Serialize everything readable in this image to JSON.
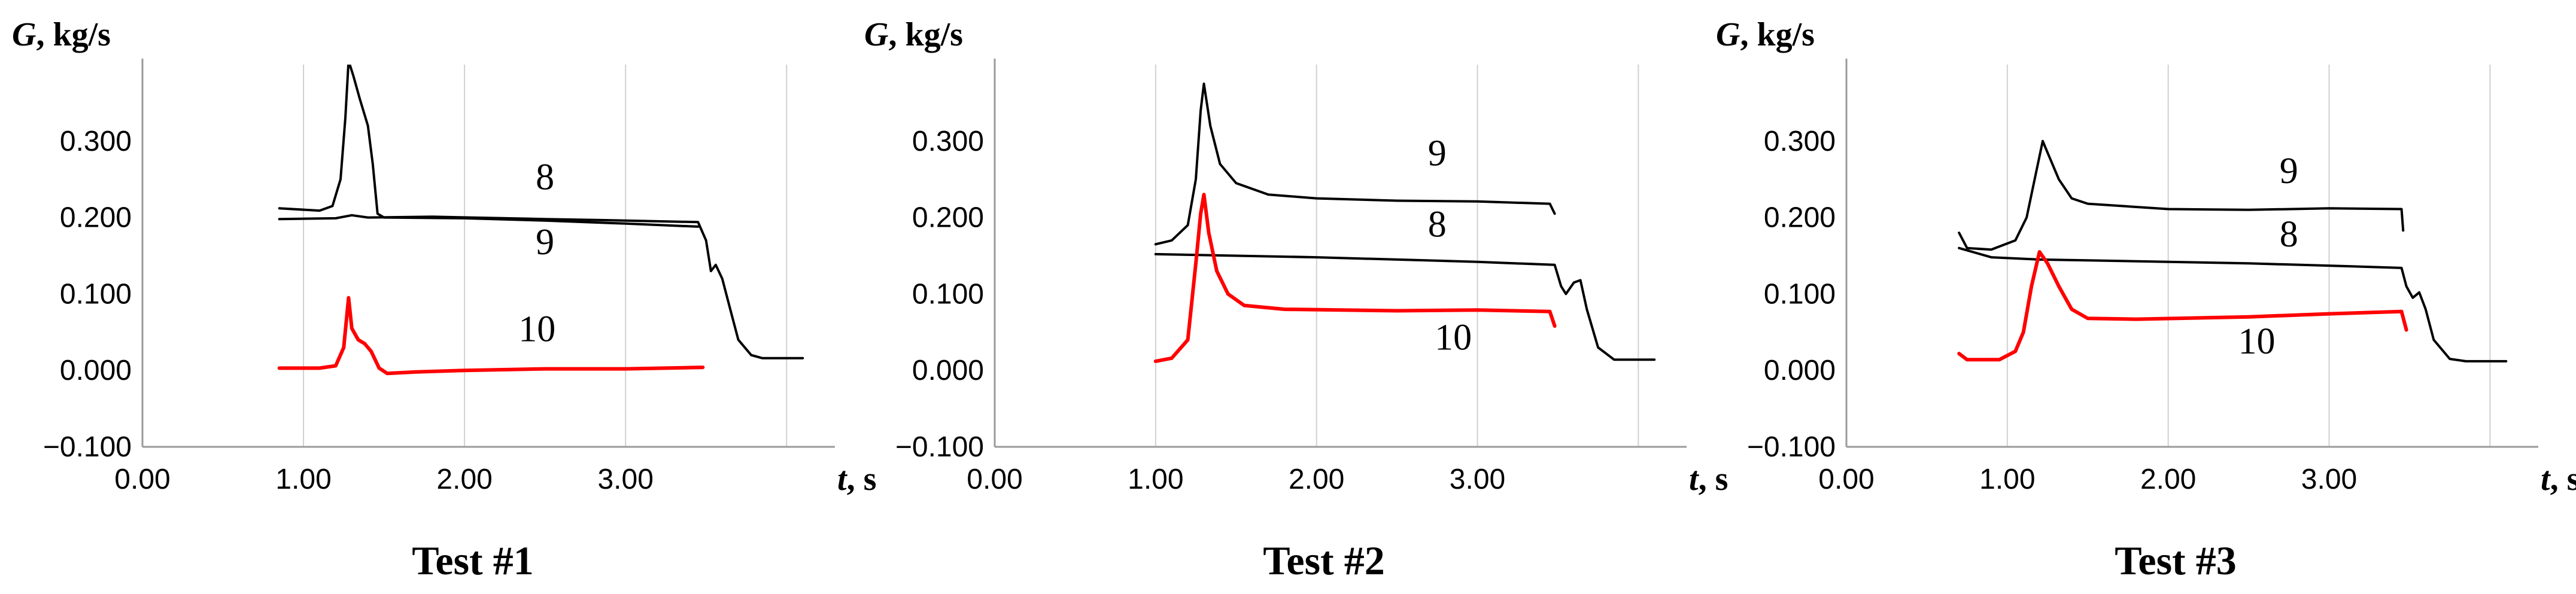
{
  "chart_data": [
    {
      "type": "line",
      "title": "Test #1",
      "xlabel": {
        "var": "t",
        "unit": ", s"
      },
      "ylabel": {
        "var": "G",
        "unit": ", kg/s"
      },
      "xlim": [
        0,
        4.3
      ],
      "ylim": [
        -0.1,
        0.4
      ],
      "xticks": [
        "0.00",
        "1.00",
        "2.00",
        "3.00"
      ],
      "yticks": [
        "−0.100",
        "0.000",
        "0.100",
        "0.200",
        "0.300"
      ],
      "grid": "vertical",
      "series": [
        {
          "name": "8",
          "color": "#000000",
          "points": [
            [
              0.85,
              0.198
            ],
            [
              1.2,
              0.199
            ],
            [
              1.3,
              0.203
            ],
            [
              1.4,
              0.2
            ],
            [
              1.8,
              0.201
            ],
            [
              2.5,
              0.198
            ],
            [
              3.0,
              0.196
            ],
            [
              3.45,
              0.194
            ],
            [
              3.5,
              0.17
            ],
            [
              3.53,
              0.13
            ],
            [
              3.56,
              0.138
            ],
            [
              3.6,
              0.12
            ],
            [
              3.65,
              0.08
            ],
            [
              3.7,
              0.04
            ],
            [
              3.78,
              0.02
            ],
            [
              3.85,
              0.016
            ],
            [
              4.1,
              0.016
            ]
          ]
        },
        {
          "name": "9",
          "color": "#000000",
          "points": [
            [
              0.85,
              0.212
            ],
            [
              1.1,
              0.209
            ],
            [
              1.18,
              0.215
            ],
            [
              1.23,
              0.25
            ],
            [
              1.26,
              0.33
            ],
            [
              1.28,
              0.405
            ],
            [
              1.31,
              0.385
            ],
            [
              1.35,
              0.355
            ],
            [
              1.4,
              0.32
            ],
            [
              1.43,
              0.27
            ],
            [
              1.46,
              0.205
            ],
            [
              1.5,
              0.2
            ],
            [
              2.0,
              0.199
            ],
            [
              2.5,
              0.196
            ],
            [
              3.0,
              0.192
            ],
            [
              3.45,
              0.188
            ]
          ]
        },
        {
          "name": "10",
          "color": "#ff0000",
          "points": [
            [
              0.85,
              0.003
            ],
            [
              1.1,
              0.003
            ],
            [
              1.2,
              0.006
            ],
            [
              1.25,
              0.03
            ],
            [
              1.28,
              0.095
            ],
            [
              1.3,
              0.055
            ],
            [
              1.34,
              0.04
            ],
            [
              1.38,
              0.035
            ],
            [
              1.42,
              0.025
            ],
            [
              1.47,
              0.003
            ],
            [
              1.52,
              -0.004
            ],
            [
              1.7,
              -0.002
            ],
            [
              2.0,
              0.0
            ],
            [
              2.5,
              0.002
            ],
            [
              3.0,
              0.002
            ],
            [
              3.48,
              0.004
            ]
          ]
        }
      ],
      "annotations": [
        {
          "text": "8",
          "x": 2.5,
          "y": 0.237
        },
        {
          "text": "9",
          "x": 2.5,
          "y": 0.152
        },
        {
          "text": "10",
          "x": 2.45,
          "y": 0.038
        }
      ]
    },
    {
      "type": "line",
      "title": "Test #2",
      "xlabel": {
        "var": "t",
        "unit": ", s"
      },
      "ylabel": {
        "var": "G",
        "unit": ", kg/s"
      },
      "xlim": [
        0,
        4.3
      ],
      "ylim": [
        -0.1,
        0.4
      ],
      "xticks": [
        "0.00",
        "1.00",
        "2.00",
        "3.00"
      ],
      "yticks": [
        "−0.100",
        "0.000",
        "0.100",
        "0.200",
        "0.300"
      ],
      "grid": "vertical",
      "series": [
        {
          "name": "8",
          "color": "#000000",
          "points": [
            [
              1.0,
              0.152
            ],
            [
              1.5,
              0.15
            ],
            [
              2.0,
              0.148
            ],
            [
              2.5,
              0.145
            ],
            [
              3.0,
              0.142
            ],
            [
              3.48,
              0.138
            ],
            [
              3.52,
              0.11
            ],
            [
              3.55,
              0.1
            ],
            [
              3.6,
              0.115
            ],
            [
              3.64,
              0.118
            ],
            [
              3.68,
              0.08
            ],
            [
              3.75,
              0.03
            ],
            [
              3.85,
              0.014
            ],
            [
              4.1,
              0.014
            ]
          ]
        },
        {
          "name": "9",
          "color": "#000000",
          "points": [
            [
              1.0,
              0.165
            ],
            [
              1.1,
              0.17
            ],
            [
              1.2,
              0.19
            ],
            [
              1.25,
              0.25
            ],
            [
              1.28,
              0.34
            ],
            [
              1.3,
              0.375
            ],
            [
              1.34,
              0.32
            ],
            [
              1.4,
              0.27
            ],
            [
              1.5,
              0.245
            ],
            [
              1.7,
              0.23
            ],
            [
              2.0,
              0.225
            ],
            [
              2.5,
              0.222
            ],
            [
              3.0,
              0.221
            ],
            [
              3.45,
              0.218
            ],
            [
              3.48,
              0.205
            ]
          ]
        },
        {
          "name": "10",
          "color": "#ff0000",
          "points": [
            [
              1.0,
              0.012
            ],
            [
              1.1,
              0.016
            ],
            [
              1.2,
              0.04
            ],
            [
              1.25,
              0.14
            ],
            [
              1.28,
              0.205
            ],
            [
              1.3,
              0.23
            ],
            [
              1.33,
              0.18
            ],
            [
              1.38,
              0.13
            ],
            [
              1.45,
              0.1
            ],
            [
              1.55,
              0.085
            ],
            [
              1.8,
              0.08
            ],
            [
              2.5,
              0.078
            ],
            [
              3.0,
              0.079
            ],
            [
              3.45,
              0.077
            ],
            [
              3.48,
              0.058
            ]
          ]
        }
      ],
      "annotations": [
        {
          "text": "9",
          "x": 2.75,
          "y": 0.268
        },
        {
          "text": "8",
          "x": 2.75,
          "y": 0.175
        },
        {
          "text": "10",
          "x": 2.85,
          "y": 0.027
        }
      ]
    },
    {
      "type": "line",
      "title": "Test #3",
      "xlabel": {
        "var": "t",
        "unit": ", s"
      },
      "ylabel": {
        "var": "G",
        "unit": ", kg/s"
      },
      "xlim": [
        0,
        4.3
      ],
      "ylim": [
        -0.1,
        0.4
      ],
      "xticks": [
        "0.00",
        "1.00",
        "2.00",
        "3.00"
      ],
      "yticks": [
        "−0.100",
        "0.000",
        "0.100",
        "0.200",
        "0.300"
      ],
      "grid": "vertical",
      "series": [
        {
          "name": "8",
          "color": "#000000",
          "points": [
            [
              0.7,
              0.16
            ],
            [
              0.9,
              0.148
            ],
            [
              1.2,
              0.145
            ],
            [
              1.5,
              0.144
            ],
            [
              2.0,
              0.142
            ],
            [
              2.5,
              0.14
            ],
            [
              3.0,
              0.137
            ],
            [
              3.45,
              0.134
            ],
            [
              3.48,
              0.11
            ],
            [
              3.52,
              0.095
            ],
            [
              3.56,
              0.102
            ],
            [
              3.6,
              0.08
            ],
            [
              3.65,
              0.04
            ],
            [
              3.75,
              0.015
            ],
            [
              3.85,
              0.012
            ],
            [
              4.1,
              0.012
            ]
          ]
        },
        {
          "name": "9",
          "color": "#000000",
          "points": [
            [
              0.7,
              0.18
            ],
            [
              0.75,
              0.16
            ],
            [
              0.9,
              0.158
            ],
            [
              1.05,
              0.17
            ],
            [
              1.12,
              0.2
            ],
            [
              1.18,
              0.26
            ],
            [
              1.22,
              0.3
            ],
            [
              1.26,
              0.28
            ],
            [
              1.32,
              0.25
            ],
            [
              1.4,
              0.225
            ],
            [
              1.5,
              0.218
            ],
            [
              2.0,
              0.211
            ],
            [
              2.5,
              0.21
            ],
            [
              3.0,
              0.212
            ],
            [
              3.45,
              0.211
            ],
            [
              3.46,
              0.183
            ]
          ]
        },
        {
          "name": "10",
          "color": "#ff0000",
          "points": [
            [
              0.7,
              0.022
            ],
            [
              0.75,
              0.014
            ],
            [
              0.95,
              0.014
            ],
            [
              1.05,
              0.025
            ],
            [
              1.1,
              0.05
            ],
            [
              1.15,
              0.11
            ],
            [
              1.2,
              0.155
            ],
            [
              1.25,
              0.14
            ],
            [
              1.32,
              0.11
            ],
            [
              1.4,
              0.08
            ],
            [
              1.5,
              0.068
            ],
            [
              1.8,
              0.067
            ],
            [
              2.5,
              0.07
            ],
            [
              3.0,
              0.074
            ],
            [
              3.45,
              0.077
            ],
            [
              3.48,
              0.053
            ]
          ]
        }
      ],
      "annotations": [
        {
          "text": "9",
          "x": 2.75,
          "y": 0.245
        },
        {
          "text": "8",
          "x": 2.75,
          "y": 0.162
        },
        {
          "text": "10",
          "x": 2.55,
          "y": 0.022
        }
      ]
    }
  ]
}
